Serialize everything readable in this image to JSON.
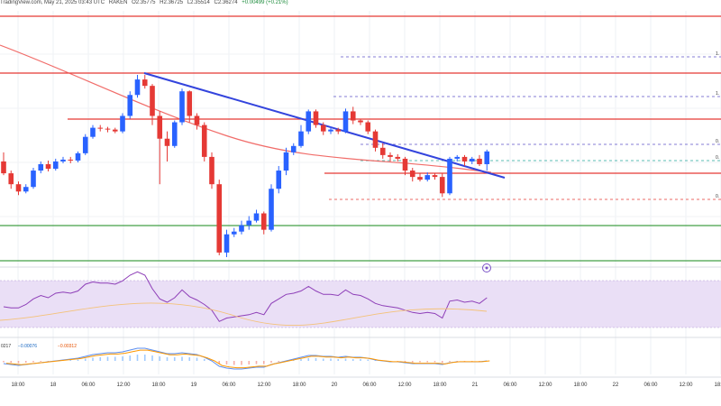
{
  "header": {
    "source": "TradingView.com, May 21, 2025 03:43 UTC",
    "exchange": "RAKEN",
    "ohlc": [
      "O2.35775",
      "H2.36725",
      "L2.35514",
      "C2.36274",
      "+0.00499 (+0.21%)"
    ]
  },
  "colors": {
    "up": "#2962ff",
    "down": "#e53935",
    "resistance": "#e53935",
    "support": "#43a047",
    "trendline": "#3344dd",
    "ma": "#ef5350",
    "fib": "#5c52c7",
    "rsi": "#8e3fb8",
    "rsi_band": "#eadff6",
    "macd": "#5b8def",
    "signal": "#ff9800"
  },
  "fib_labels": [
    "1.",
    "1.",
    "0.",
    "0.",
    "0."
  ],
  "rsi_label": "",
  "macd_values": [
    "0217",
    "−0.00076",
    "−0.00312"
  ],
  "x_ticks": [
    "18:00",
    "18",
    "06:00",
    "12:00",
    "18:00",
    "19",
    "06:00",
    "12:00",
    "18:00",
    "20",
    "06:00",
    "12:00",
    "18:00",
    "21",
    "06:00",
    "12:00",
    "18:00",
    "22",
    "06:00",
    "12:00",
    "18:00"
  ],
  "chart_data": {
    "type": "candlestick",
    "title": "",
    "series": [
      {
        "candles": [
          [
            0,
            0.55,
            0.42,
            0.65,
            0.4
          ],
          [
            1,
            0.42,
            0.3,
            0.45,
            0.25
          ],
          [
            2,
            0.3,
            0.22,
            0.33,
            0.18
          ],
          [
            3,
            0.22,
            0.27,
            0.3,
            0.2
          ],
          [
            4,
            0.27,
            0.45,
            0.48,
            0.25
          ],
          [
            5,
            0.45,
            0.52,
            0.55,
            0.42
          ],
          [
            6,
            0.52,
            0.47,
            0.56,
            0.44
          ],
          [
            7,
            0.47,
            0.55,
            0.58,
            0.45
          ],
          [
            8,
            0.55,
            0.57,
            0.6,
            0.53
          ],
          [
            9,
            0.57,
            0.56,
            0.6,
            0.53
          ],
          [
            10,
            0.56,
            0.64,
            0.66,
            0.54
          ],
          [
            11,
            0.64,
            0.82,
            0.85,
            0.62
          ],
          [
            12,
            0.82,
            0.92,
            0.95,
            0.8
          ],
          [
            13,
            0.92,
            0.91,
            0.95,
            0.88
          ],
          [
            14,
            0.91,
            0.9,
            0.93,
            0.87
          ],
          [
            15,
            0.9,
            0.88,
            0.92,
            0.86
          ],
          [
            16,
            0.88,
            1.05,
            1.08,
            0.86
          ],
          [
            17,
            1.05,
            1.28,
            1.32,
            1.02
          ],
          [
            18,
            1.28,
            1.45,
            1.5,
            1.25
          ],
          [
            19,
            1.45,
            1.38,
            1.5,
            1.35
          ],
          [
            20,
            1.38,
            1.05,
            1.4,
            0.95
          ],
          [
            21,
            1.05,
            0.8,
            1.1,
            0.3
          ],
          [
            22,
            0.8,
            0.72,
            0.88,
            0.55
          ],
          [
            23,
            0.72,
            0.98,
            1.0,
            0.7
          ],
          [
            24,
            0.98,
            1.32,
            1.35,
            0.95
          ],
          [
            25,
            1.32,
            1.05,
            1.33,
            0.98
          ],
          [
            26,
            1.05,
            0.95,
            1.08,
            0.9
          ],
          [
            27,
            0.95,
            0.6,
            0.98,
            0.55
          ],
          [
            28,
            0.6,
            0.3,
            0.65,
            0.25
          ],
          [
            29,
            0.3,
            -0.45,
            0.35,
            -0.48
          ],
          [
            30,
            -0.45,
            -0.25,
            -0.2,
            -0.5
          ],
          [
            31,
            -0.25,
            -0.22,
            -0.18,
            -0.28
          ],
          [
            32,
            -0.22,
            -0.15,
            -0.1,
            -0.25
          ],
          [
            33,
            -0.15,
            -0.1,
            -0.05,
            -0.2
          ],
          [
            34,
            -0.1,
            -0.02,
            0.02,
            -0.12
          ],
          [
            35,
            -0.02,
            -0.2,
            0.0,
            -0.25
          ],
          [
            36,
            -0.2,
            0.25,
            0.3,
            -0.22
          ],
          [
            37,
            0.25,
            0.45,
            0.5,
            0.2
          ],
          [
            38,
            0.45,
            0.65,
            0.7,
            0.4
          ],
          [
            39,
            0.65,
            0.72,
            0.75,
            0.62
          ],
          [
            40,
            0.72,
            0.88,
            0.95,
            0.7
          ],
          [
            41,
            0.88,
            1.1,
            1.12,
            0.85
          ],
          [
            42,
            1.1,
            0.95,
            1.12,
            0.92
          ],
          [
            43,
            0.95,
            0.88,
            0.98,
            0.84
          ],
          [
            44,
            0.88,
            0.9,
            0.93,
            0.85
          ],
          [
            45,
            0.9,
            0.88,
            0.92,
            0.85
          ],
          [
            46,
            0.88,
            1.1,
            1.13,
            0.86
          ],
          [
            47,
            1.1,
            1.0,
            1.15,
            0.96
          ],
          [
            48,
            1.0,
            0.98,
            1.02,
            0.95
          ],
          [
            49,
            0.98,
            0.88,
            1.0,
            0.85
          ],
          [
            50,
            0.88,
            0.7,
            0.9,
            0.66
          ],
          [
            51,
            0.7,
            0.62,
            0.75,
            0.58
          ],
          [
            52,
            0.62,
            0.6,
            0.65,
            0.55
          ],
          [
            53,
            0.6,
            0.58,
            0.63,
            0.55
          ],
          [
            54,
            0.58,
            0.45,
            0.6,
            0.4
          ],
          [
            55,
            0.45,
            0.38,
            0.48,
            0.33
          ],
          [
            56,
            0.38,
            0.35,
            0.42,
            0.33
          ],
          [
            57,
            0.35,
            0.4,
            0.43,
            0.33
          ],
          [
            58,
            0.4,
            0.38,
            0.42,
            0.35
          ],
          [
            59,
            0.38,
            0.2,
            0.42,
            0.16
          ],
          [
            60,
            0.2,
            0.58,
            0.6,
            0.18
          ],
          [
            61,
            0.58,
            0.6,
            0.62,
            0.55
          ],
          [
            62,
            0.6,
            0.55,
            0.62,
            0.5
          ],
          [
            63,
            0.55,
            0.58,
            0.6,
            0.52
          ],
          [
            64,
            0.58,
            0.52,
            0.62,
            0.5
          ],
          [
            65,
            0.52,
            0.66,
            0.68,
            0.45
          ]
        ]
      }
    ],
    "resistance_levels": [
      2.72,
      2.55,
      2.45
    ],
    "support_levels": [
      2.3,
      2.19
    ],
    "y_range": [
      2.15,
      2.78
    ],
    "rsi": [
      48,
      47,
      47,
      50,
      55,
      58,
      56,
      60,
      61,
      60,
      62,
      68,
      70,
      69,
      69,
      68,
      71,
      76,
      79,
      76,
      64,
      55,
      52,
      56,
      63,
      57,
      54,
      50,
      45,
      35,
      38,
      39,
      40,
      41,
      43,
      41,
      51,
      55,
      59,
      60,
      62,
      66,
      62,
      59,
      59,
      58,
      63,
      59,
      58,
      55,
      51,
      49,
      48,
      47,
      45,
      43,
      42,
      43,
      42,
      38,
      53,
      54,
      52,
      53,
      51,
      56
    ],
    "macd": [
      -0.003,
      -0.004,
      -0.005,
      -0.004,
      -0.003,
      -0.002,
      -0.001,
      0.0,
      0.001,
      0.002,
      0.003,
      0.005,
      0.007,
      0.008,
      0.009,
      0.009,
      0.01,
      0.012,
      0.014,
      0.014,
      0.012,
      0.01,
      0.008,
      0.008,
      0.009,
      0.008,
      0.007,
      0.004,
      0.0,
      -0.006,
      -0.008,
      -0.009,
      -0.009,
      -0.008,
      -0.007,
      -0.007,
      -0.004,
      -0.002,
      0.0,
      0.002,
      0.004,
      0.006,
      0.006,
      0.005,
      0.005,
      0.004,
      0.005,
      0.004,
      0.004,
      0.003,
      0.001,
      0.0,
      -0.001,
      -0.001,
      -0.002,
      -0.003,
      -0.003,
      -0.003,
      -0.003,
      -0.004,
      -0.002,
      -0.001,
      -0.001,
      -0.001,
      -0.001,
      0.0
    ]
  }
}
